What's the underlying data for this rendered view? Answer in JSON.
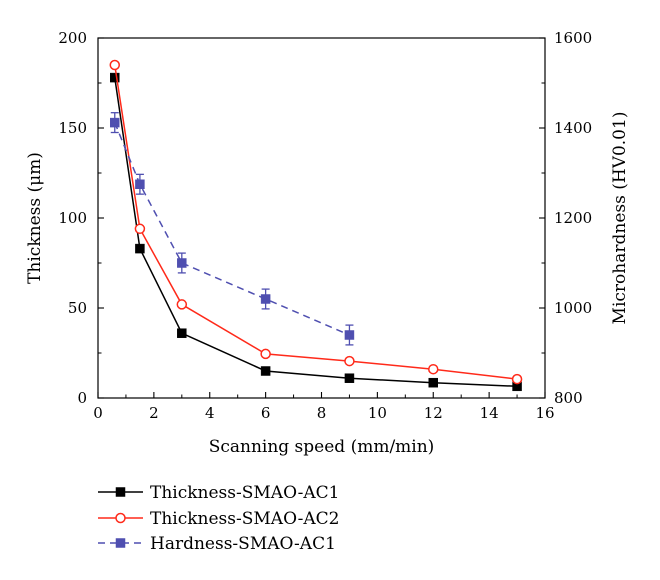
{
  "chart_data": {
    "type": "line",
    "title": "",
    "xlabel": "Scanning speed (mm/min)",
    "ylabel": "Thickness (μm)",
    "y2label": "Microhardness (HV0.01)",
    "xlim": [
      0,
      16
    ],
    "ylim": [
      0,
      200
    ],
    "y2lim": [
      800,
      1600
    ],
    "xticks": [
      "0",
      "2",
      "4",
      "6",
      "8",
      "10",
      "12",
      "14",
      "16"
    ],
    "yticks": [
      "0",
      "50",
      "100",
      "150",
      "200"
    ],
    "y2ticks": [
      "800",
      "1000",
      "1200",
      "1400",
      "1600"
    ],
    "grid": false,
    "legend_position": "bottom",
    "series": [
      {
        "name": "Thickness-SMAO-AC1",
        "axis": "left",
        "color": "#000000",
        "marker": "filled-square",
        "line_style": "solid",
        "x": [
          0.6,
          1.5,
          3,
          6,
          9,
          12,
          15
        ],
        "y": [
          178,
          83,
          36,
          15,
          11,
          8.5,
          6.5
        ]
      },
      {
        "name": "Thickness-SMAO-AC2",
        "axis": "left",
        "color": "#ff2a1a",
        "marker": "open-circle",
        "line_style": "solid",
        "x": [
          0.6,
          1.5,
          3,
          6,
          9,
          12,
          15
        ],
        "y": [
          185,
          94,
          52,
          24.5,
          20.5,
          16,
          10.5
        ]
      },
      {
        "name": "Hardness-SMAO-AC1",
        "axis": "right",
        "color": "#4f4fb0",
        "marker": "filled-square",
        "line_style": "dashed",
        "x": [
          0.6,
          1.5,
          3,
          6,
          9
        ],
        "y": [
          1412,
          1275,
          1100,
          1020,
          940
        ],
        "error": [
          22,
          22,
          22,
          22,
          22
        ]
      }
    ]
  }
}
